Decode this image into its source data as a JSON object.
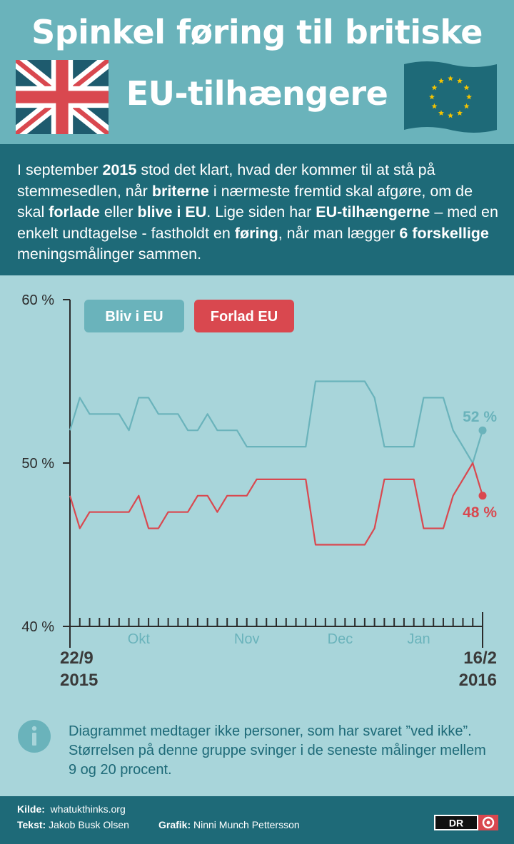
{
  "header": {
    "title_line1": "Spinkel føring til britiske",
    "title_line2": "EU-tilhængere",
    "colors": {
      "bg": "#6ab3bb",
      "dark": "#1e6a78"
    },
    "left_flag_icon": "union-jack-flag-icon",
    "right_flag_icon": "eu-flag-icon"
  },
  "intro": {
    "segments": [
      {
        "text": "I september ",
        "bold": false
      },
      {
        "text": "2015",
        "bold": true
      },
      {
        "text": " stod det klart, hvad der kommer til at stå på stemmesedlen, når ",
        "bold": false
      },
      {
        "text": "briterne",
        "bold": true
      },
      {
        "text": " i nærmeste fremtid skal afgøre, om de skal ",
        "bold": false
      },
      {
        "text": "forlade",
        "bold": true
      },
      {
        "text": " eller ",
        "bold": false
      },
      {
        "text": "blive i EU",
        "bold": true
      },
      {
        "text": ". Lige siden har ",
        "bold": false
      },
      {
        "text": "EU-tilhængerne",
        "bold": true
      },
      {
        "text": " – med en enkelt undtagelse - fastholdt en ",
        "bold": false
      },
      {
        "text": "føring",
        "bold": true
      },
      {
        "text": ", når man lægger ",
        "bold": false
      },
      {
        "text": "6 forskellige",
        "bold": true
      },
      {
        "text": " meningsmålinger sammen.",
        "bold": false
      }
    ]
  },
  "chart_data": {
    "type": "line",
    "x_start_label": [
      "22/9",
      "2015"
    ],
    "x_end_label": [
      "16/2",
      "2016"
    ],
    "month_labels": [
      "Okt",
      "Nov",
      "Dec",
      "Jan"
    ],
    "y_ticks": [
      "60 %",
      "50 %",
      "40 %"
    ],
    "ylim": [
      40,
      60
    ],
    "grid": false,
    "legend_placement": "top-left",
    "series": [
      {
        "name": "Bliv i EU",
        "color": "#6ab3bb",
        "end_label": "52 %",
        "values": [
          52,
          54,
          53,
          53,
          53,
          53,
          52,
          54,
          54,
          53,
          53,
          53,
          52,
          52,
          53,
          52,
          52,
          52,
          51,
          51,
          51,
          51,
          51,
          51,
          51,
          55,
          55,
          55,
          55,
          55,
          55,
          54,
          51,
          51,
          51,
          51,
          54,
          54,
          54,
          52,
          51,
          50,
          52
        ]
      },
      {
        "name": "Forlad EU",
        "color": "#d9484f",
        "end_label": "48 %",
        "values": [
          48,
          46,
          47,
          47,
          47,
          47,
          47,
          48,
          46,
          46,
          47,
          47,
          47,
          48,
          48,
          47,
          48,
          48,
          48,
          49,
          49,
          49,
          49,
          49,
          49,
          45,
          45,
          45,
          45,
          45,
          45,
          46,
          49,
          49,
          49,
          49,
          46,
          46,
          46,
          48,
          49,
          50,
          48
        ]
      }
    ]
  },
  "note": {
    "icon": "info-icon",
    "text": "Diagrammet medtager ikke personer, som har svaret ”ved ikke”. Størrelsen på denne gruppe svinger i de seneste målinger mellem 9 og 20 procent."
  },
  "footer": {
    "source_label": "Kilde:",
    "source_value": "whatukthinks.org",
    "text_label": "Tekst:",
    "text_value": "Jakob Busk Olsen",
    "graphic_label": "Grafik:",
    "graphic_value": "Ninni Munch Pettersson",
    "logo_text": "DR"
  }
}
